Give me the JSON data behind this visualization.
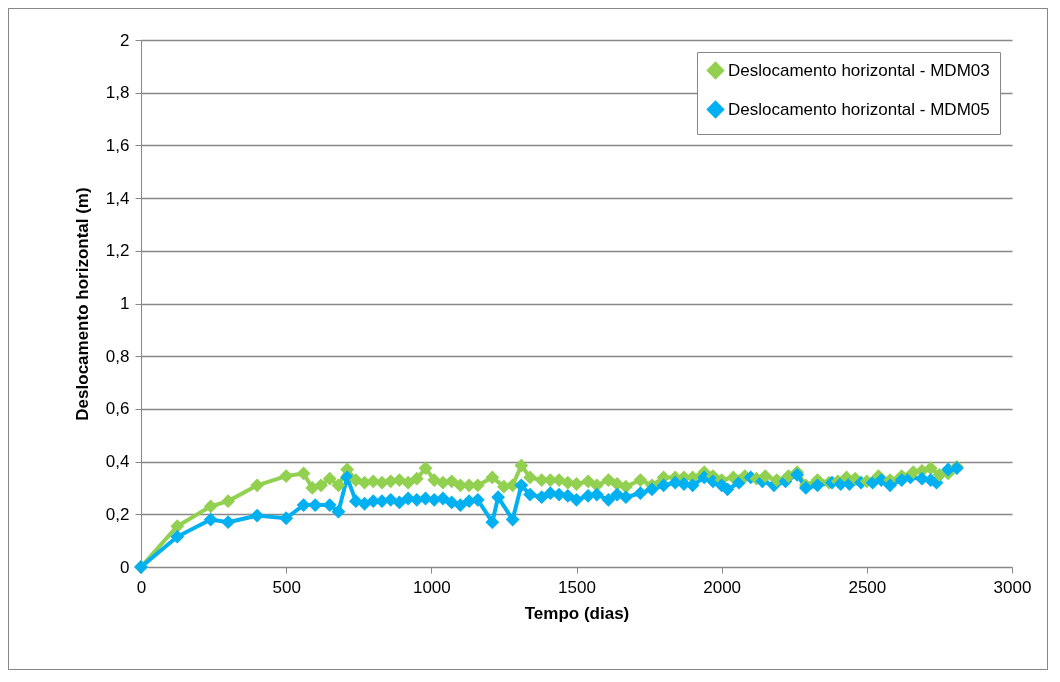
{
  "chart_data": {
    "type": "line",
    "xlabel": "Tempo (dias)",
    "ylabel": "Deslocamento horizontal (m)",
    "xlim": [
      0,
      3000
    ],
    "xticks": [
      0,
      500,
      1000,
      1500,
      2000,
      2500,
      3000
    ],
    "ylim": [
      0,
      2
    ],
    "yticks": [
      0,
      {
        "value": 0.2,
        "label": "0,2"
      },
      {
        "value": 0.4,
        "label": "0,4"
      },
      {
        "value": 0.6,
        "label": "0,6"
      },
      {
        "value": 0.8,
        "label": "0,8"
      },
      1,
      {
        "value": 1.2,
        "label": "1,2"
      },
      {
        "value": 1.4,
        "label": "1,4"
      },
      {
        "value": 1.6,
        "label": "1,6"
      },
      {
        "value": 1.8,
        "label": "1,8"
      },
      2
    ],
    "grid": "y",
    "legend": "top right",
    "marker": "diamond",
    "line_style": "solid",
    "series": [
      {
        "name": "Deslocamento horizontal - MDM03",
        "color": "#92d050",
        "x": [
          0,
          125,
          240,
          300,
          400,
          500,
          560,
          590,
          620,
          650,
          680,
          710,
          740,
          770,
          800,
          830,
          860,
          890,
          920,
          950,
          980,
          1010,
          1040,
          1070,
          1100,
          1130,
          1160,
          1210,
          1250,
          1280,
          1310,
          1340,
          1380,
          1410,
          1440,
          1470,
          1500,
          1540,
          1570,
          1610,
          1640,
          1670,
          1720,
          1760,
          1800,
          1840,
          1870,
          1900,
          1940,
          1970,
          2000,
          2040,
          2080,
          2120,
          2150,
          2190,
          2230,
          2260,
          2290,
          2330,
          2370,
          2400,
          2430,
          2460,
          2500,
          2540,
          2580,
          2620,
          2660,
          2690,
          2720,
          2750,
          2780,
          2810
        ],
        "values": [
          0,
          0.155,
          0.23,
          0.25,
          0.31,
          0.345,
          0.355,
          0.3,
          0.31,
          0.335,
          0.31,
          0.37,
          0.33,
          0.32,
          0.325,
          0.32,
          0.325,
          0.33,
          0.32,
          0.335,
          0.375,
          0.33,
          0.32,
          0.325,
          0.31,
          0.31,
          0.31,
          0.34,
          0.305,
          0.31,
          0.385,
          0.34,
          0.33,
          0.33,
          0.33,
          0.32,
          0.315,
          0.325,
          0.31,
          0.33,
          0.315,
          0.305,
          0.33,
          0.31,
          0.34,
          0.34,
          0.34,
          0.34,
          0.36,
          0.345,
          0.33,
          0.34,
          0.345,
          0.335,
          0.345,
          0.33,
          0.345,
          0.36,
          0.31,
          0.33,
          0.32,
          0.325,
          0.34,
          0.335,
          0.325,
          0.345,
          0.33,
          0.345,
          0.36,
          0.365,
          0.375,
          0.35,
          0.355,
          0.38
        ]
      },
      {
        "name": "Deslocamento horizontal - MDM05",
        "color": "#00b0f0",
        "x": [
          0,
          125,
          240,
          300,
          400,
          500,
          560,
          600,
          650,
          680,
          710,
          740,
          770,
          800,
          830,
          860,
          890,
          920,
          950,
          980,
          1010,
          1040,
          1070,
          1100,
          1130,
          1160,
          1210,
          1230,
          1280,
          1310,
          1340,
          1380,
          1410,
          1440,
          1470,
          1500,
          1540,
          1570,
          1610,
          1640,
          1670,
          1720,
          1760,
          1800,
          1840,
          1870,
          1900,
          1940,
          1970,
          2000,
          2020,
          2060,
          2100,
          2140,
          2180,
          2220,
          2260,
          2290,
          2330,
          2380,
          2410,
          2440,
          2480,
          2520,
          2550,
          2580,
          2620,
          2650,
          2690,
          2720,
          2740,
          2780,
          2810
        ],
        "values": [
          0,
          0.115,
          0.18,
          0.17,
          0.195,
          0.185,
          0.235,
          0.235,
          0.235,
          0.21,
          0.34,
          0.25,
          0.24,
          0.25,
          0.25,
          0.255,
          0.245,
          0.26,
          0.255,
          0.26,
          0.255,
          0.26,
          0.245,
          0.235,
          0.25,
          0.255,
          0.17,
          0.265,
          0.18,
          0.31,
          0.275,
          0.265,
          0.28,
          0.275,
          0.27,
          0.255,
          0.27,
          0.275,
          0.255,
          0.275,
          0.265,
          0.28,
          0.295,
          0.31,
          0.32,
          0.315,
          0.31,
          0.34,
          0.325,
          0.31,
          0.295,
          0.32,
          0.34,
          0.325,
          0.31,
          0.325,
          0.35,
          0.3,
          0.31,
          0.32,
          0.315,
          0.315,
          0.32,
          0.32,
          0.33,
          0.31,
          0.33,
          0.34,
          0.335,
          0.33,
          0.32,
          0.37,
          0.375
        ]
      }
    ]
  }
}
